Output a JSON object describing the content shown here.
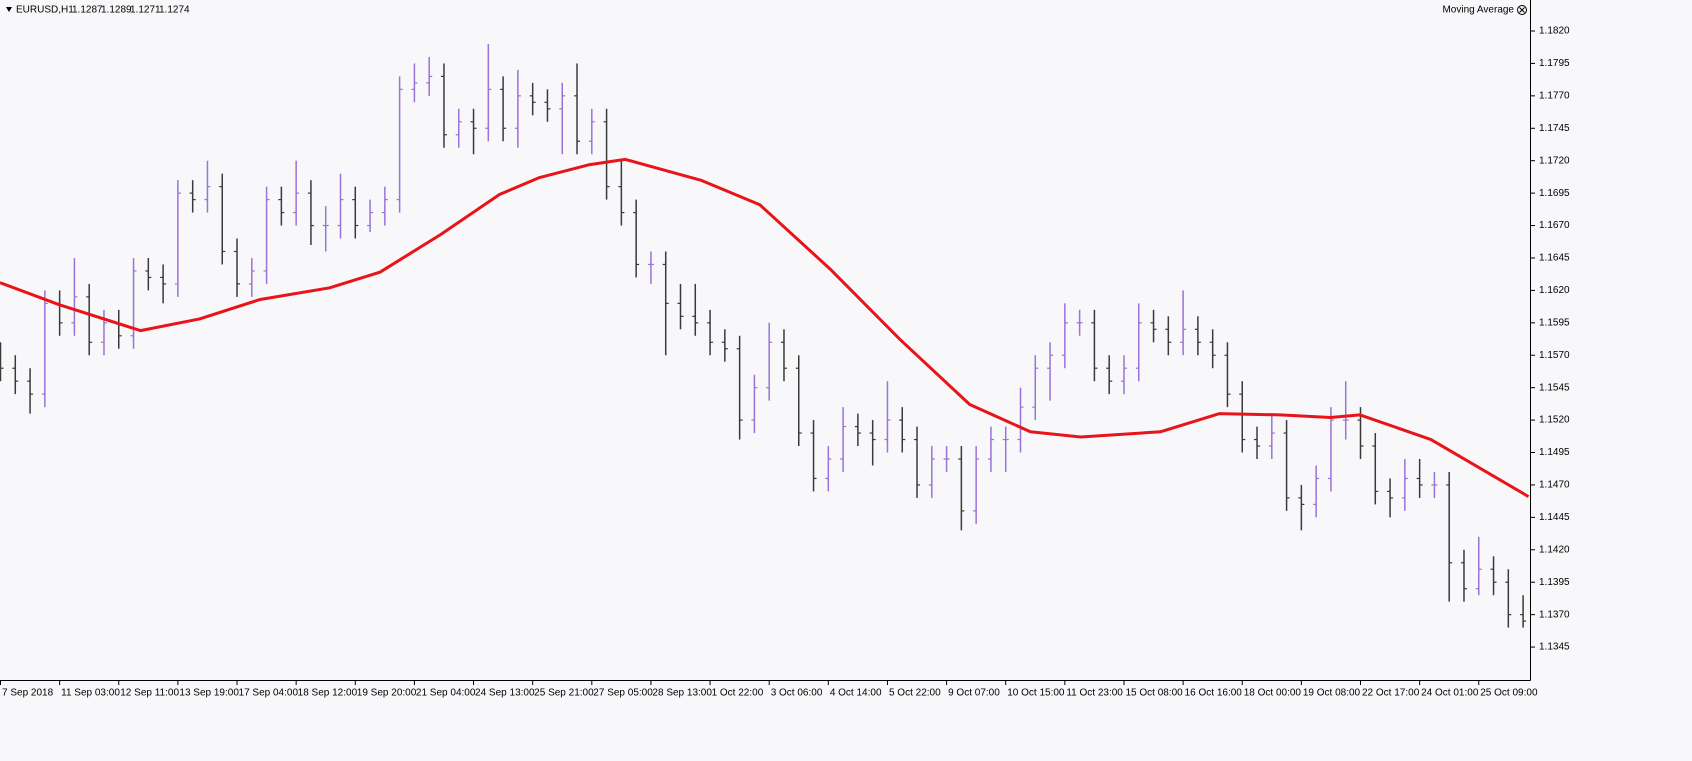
{
  "chart_data": {
    "type": "ohlc",
    "title": "EURUSD,H1",
    "quote": [
      1.1287,
      1.1289,
      1.1271,
      1.1274
    ],
    "up_color": "#9b72d8",
    "down_color": "#3a3a3a",
    "xlim": [
      0,
      103.5
    ],
    "xticks": [
      {
        "value": 0,
        "label": "7 Sep 2018"
      },
      {
        "value": 4,
        "label": "11 Sep 03:00"
      },
      {
        "value": 8,
        "label": "12 Sep 11:00"
      },
      {
        "value": 12,
        "label": "13 Sep 19:00"
      },
      {
        "value": 16,
        "label": "17 Sep 04:00"
      },
      {
        "value": 20,
        "label": "18 Sep 12:00"
      },
      {
        "value": 24,
        "label": "19 Sep 20:00"
      },
      {
        "value": 28,
        "label": "21 Sep 04:00"
      },
      {
        "value": 32,
        "label": "24 Sep 13:00"
      },
      {
        "value": 36,
        "label": "25 Sep 21:00"
      },
      {
        "value": 40,
        "label": "27 Sep 05:00"
      },
      {
        "value": 44,
        "label": "28 Sep 13:00"
      },
      {
        "value": 48,
        "label": "1 Oct 22:00"
      },
      {
        "value": 52,
        "label": "3 Oct 06:00"
      },
      {
        "value": 56,
        "label": "4 Oct 14:00"
      },
      {
        "value": 60,
        "label": "5 Oct 22:00"
      },
      {
        "value": 64,
        "label": "9 Oct 07:00"
      },
      {
        "value": 68,
        "label": "10 Oct 15:00"
      },
      {
        "value": 72,
        "label": "11 Oct 23:00"
      },
      {
        "value": 76,
        "label": "15 Oct 08:00"
      },
      {
        "value": 80,
        "label": "16 Oct 16:00"
      },
      {
        "value": 84,
        "label": "18 Oct 00:00"
      },
      {
        "value": 88,
        "label": "19 Oct 08:00"
      },
      {
        "value": 92,
        "label": "22 Oct 17:00"
      },
      {
        "value": 96,
        "label": "24 Oct 01:00"
      },
      {
        "value": 100,
        "label": "25 Oct 09:00"
      }
    ],
    "ylim": [
      1.13196,
      1.18439
    ],
    "yticks": [
      1.1345,
      {
        "value": 1.137,
        "label": "1.1370"
      },
      1.1395,
      {
        "value": 1.142,
        "label": "1.1420"
      },
      1.1445,
      {
        "value": 1.147,
        "label": "1.1470"
      },
      1.1495,
      {
        "value": 1.152,
        "label": "1.1520"
      },
      1.1545,
      {
        "value": 1.157,
        "label": "1.1570"
      },
      1.1595,
      {
        "value": 1.162,
        "label": "1.1620"
      },
      1.1645,
      {
        "value": 1.167,
        "label": "1.1670"
      },
      1.1695,
      {
        "value": 1.172,
        "label": "1.1720"
      },
      1.1745,
      {
        "value": 1.177,
        "label": "1.1770"
      },
      1.1795,
      {
        "value": 1.182,
        "label": "1.1820"
      }
    ],
    "open": [
      1.157,
      1.156,
      1.155,
      1.154,
      1.161,
      1.1595,
      1.1615,
      1.158,
      1.1595,
      1.1585,
      1.1635,
      1.163,
      1.1625,
      1.1695,
      1.169,
      1.17,
      1.165,
      1.1625,
      1.1635,
      1.169,
      1.168,
      1.1695,
      1.167,
      1.167,
      1.169,
      1.167,
      1.168,
      1.169,
      1.1775,
      1.178,
      1.1785,
      1.174,
      1.175,
      1.1745,
      1.1775,
      1.1745,
      1.177,
      1.1765,
      1.176,
      1.177,
      1.1735,
      1.175,
      1.17,
      1.168,
      1.164,
      1.164,
      1.161,
      1.16,
      1.1595,
      1.158,
      1.1575,
      1.152,
      1.1545,
      1.158,
      1.156,
      1.151,
      1.1475,
      1.149,
      1.1515,
      1.151,
      1.1505,
      1.152,
      1.1505,
      1.147,
      1.149,
      1.149,
      1.145,
      1.149,
      1.1505,
      1.1505,
      1.153,
      1.156,
      1.157,
      1.1595,
      1.1595,
      1.156,
      1.155,
      1.156,
      1.1595,
      1.159,
      1.158,
      1.159,
      1.158,
      1.157,
      1.154,
      1.1505,
      1.15,
      1.151,
      1.146,
      1.1455,
      1.1475,
      1.152,
      1.152,
      1.15,
      1.1465,
      1.146,
      1.1475,
      1.147,
      1.147,
      1.141,
      1.139,
      1.1405,
      1.1395,
      1.137
    ],
    "high": [
      1.158,
      1.157,
      1.156,
      1.162,
      1.162,
      1.1645,
      1.1625,
      1.1605,
      1.1605,
      1.1645,
      1.1645,
      1.164,
      1.1705,
      1.1705,
      1.172,
      1.171,
      1.166,
      1.1645,
      1.17,
      1.17,
      1.172,
      1.1705,
      1.1685,
      1.171,
      1.17,
      1.169,
      1.17,
      1.1785,
      1.1795,
      1.18,
      1.1795,
      1.176,
      1.176,
      1.181,
      1.1785,
      1.179,
      1.178,
      1.1775,
      1.178,
      1.1795,
      1.176,
      1.176,
      1.172,
      1.169,
      1.165,
      1.165,
      1.1625,
      1.1625,
      1.1605,
      1.159,
      1.1585,
      1.1555,
      1.1595,
      1.159,
      1.157,
      1.152,
      1.15,
      1.153,
      1.1525,
      1.152,
      1.155,
      1.153,
      1.1515,
      1.15,
      1.15,
      1.15,
      1.15,
      1.1515,
      1.1515,
      1.1545,
      1.157,
      1.158,
      1.161,
      1.1605,
      1.1605,
      1.157,
      1.157,
      1.161,
      1.1605,
      1.16,
      1.162,
      1.16,
      1.159,
      1.158,
      1.155,
      1.1515,
      1.1525,
      1.152,
      1.147,
      1.1485,
      1.153,
      1.155,
      1.153,
      1.151,
      1.1475,
      1.149,
      1.149,
      1.148,
      1.148,
      1.142,
      1.143,
      1.1415,
      1.1405,
      1.1385
    ],
    "low": [
      1.155,
      1.154,
      1.1525,
      1.153,
      1.1585,
      1.1585,
      1.157,
      1.157,
      1.1575,
      1.1575,
      1.162,
      1.161,
      1.1615,
      1.168,
      1.168,
      1.164,
      1.1615,
      1.1615,
      1.1625,
      1.167,
      1.167,
      1.1655,
      1.165,
      1.166,
      1.166,
      1.1665,
      1.167,
      1.168,
      1.1765,
      1.177,
      1.173,
      1.173,
      1.1725,
      1.1735,
      1.1735,
      1.173,
      1.1755,
      1.175,
      1.1725,
      1.1725,
      1.1725,
      1.169,
      1.167,
      1.163,
      1.1625,
      1.157,
      1.159,
      1.1585,
      1.157,
      1.1565,
      1.1505,
      1.151,
      1.1535,
      1.155,
      1.15,
      1.1465,
      1.1465,
      1.148,
      1.15,
      1.1485,
      1.1495,
      1.1495,
      1.146,
      1.146,
      1.148,
      1.1435,
      1.144,
      1.148,
      1.148,
      1.1495,
      1.152,
      1.1535,
      1.156,
      1.1585,
      1.155,
      1.154,
      1.154,
      1.155,
      1.158,
      1.157,
      1.157,
      1.157,
      1.156,
      1.153,
      1.1495,
      1.149,
      1.149,
      1.145,
      1.1435,
      1.1445,
      1.1465,
      1.1505,
      1.149,
      1.1455,
      1.1445,
      1.145,
      1.146,
      1.146,
      1.138,
      1.138,
      1.1385,
      1.1385,
      1.136,
      1.136
    ],
    "close": [
      1.156,
      1.155,
      1.154,
      1.161,
      1.1595,
      1.1615,
      1.158,
      1.1595,
      1.1585,
      1.1635,
      1.163,
      1.1625,
      1.1695,
      1.169,
      1.17,
      1.165,
      1.1625,
      1.1635,
      1.169,
      1.168,
      1.1695,
      1.167,
      1.167,
      1.169,
      1.167,
      1.168,
      1.169,
      1.1775,
      1.178,
      1.1785,
      1.174,
      1.175,
      1.1745,
      1.1775,
      1.1745,
      1.177,
      1.1765,
      1.176,
      1.177,
      1.1735,
      1.175,
      1.17,
      1.168,
      1.164,
      1.164,
      1.161,
      1.16,
      1.1595,
      1.158,
      1.1575,
      1.152,
      1.1545,
      1.158,
      1.156,
      1.151,
      1.1475,
      1.149,
      1.1515,
      1.151,
      1.1505,
      1.152,
      1.1505,
      1.147,
      1.149,
      1.149,
      1.145,
      1.149,
      1.1505,
      1.1505,
      1.153,
      1.156,
      1.157,
      1.1595,
      1.1595,
      1.156,
      1.155,
      1.156,
      1.1595,
      1.159,
      1.158,
      1.159,
      1.158,
      1.157,
      1.154,
      1.1505,
      1.15,
      1.151,
      1.146,
      1.1455,
      1.1475,
      1.152,
      1.152,
      1.15,
      1.1465,
      1.146,
      1.1475,
      1.147,
      1.147,
      1.141,
      1.139,
      1.1405,
      1.1395,
      1.137,
      1.1365
    ],
    "series": [
      {
        "name": "Moving Average",
        "color": "#e8141a",
        "x": [
          0,
          4,
          9.5,
          13.5,
          17.6,
          22.3,
          25.7,
          29.8,
          33.8,
          36.5,
          39.9,
          42.3,
          47.4,
          51.4,
          56.2,
          60.9,
          65.6,
          69.7,
          73.1,
          78.5,
          82.5,
          86.6,
          90,
          92,
          96.8,
          100.1,
          103.4
        ],
        "values": [
          1.1626,
          1.1609,
          1.1589,
          1.1598,
          1.1613,
          1.1622,
          1.1634,
          1.1663,
          1.1694,
          1.1707,
          1.1717,
          1.1721,
          1.1705,
          1.1686,
          1.1636,
          1.1582,
          1.1532,
          1.1511,
          1.1507,
          1.1511,
          1.1525,
          1.1524,
          1.1522,
          1.1524,
          1.1505,
          1.1483,
          1.1461
        ]
      }
    ]
  }
}
